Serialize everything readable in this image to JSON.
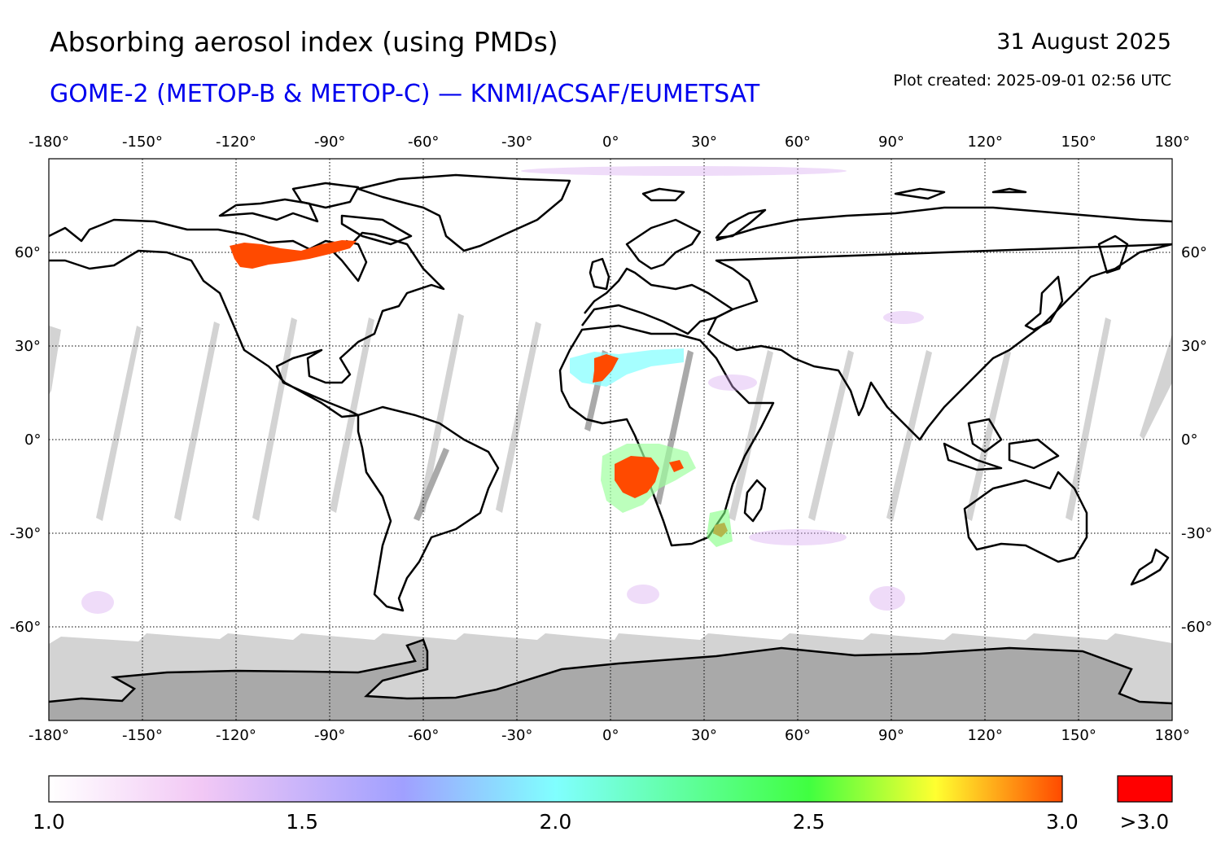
{
  "header": {
    "title": "Absorbing aerosol index (using PMDs)",
    "subtitle": "GOME-2 (METOP-B & METOP-C) — KNMI/ACSAF/EUMETSAT",
    "date": "31 August 2025",
    "plot_created": "Plot created: 2025-09-01 02:56 UTC"
  },
  "colors": {
    "subtitle": "#0000ee",
    "no_data_gray": "#d3d3d3",
    "land_gray": "#a9a9a9",
    "over_range": "#ff0000"
  },
  "map": {
    "projection": "equirectangular",
    "lon_range": [
      -180,
      180
    ],
    "lat_range": [
      -90,
      90
    ],
    "lon_ticks": [
      "-180°",
      "-150°",
      "-120°",
      "-90°",
      "-60°",
      "-30°",
      "0°",
      "30°",
      "60°",
      "90°",
      "120°",
      "150°",
      "180°"
    ],
    "lat_ticks": [
      "60°",
      "30°",
      "0°",
      "-30°",
      "-60°"
    ],
    "gridlines": "dotted"
  },
  "colorbar": {
    "min": 1.0,
    "max": 3.0,
    "labels": [
      "1.0",
      "1.5",
      "2.0",
      "2.5",
      "3.0"
    ],
    "over_label": ">3.0",
    "stops": [
      {
        "value": 1.0,
        "color": "#ffffff"
      },
      {
        "value": 1.3,
        "color": "#f2c8f5"
      },
      {
        "value": 1.7,
        "color": "#a0a0ff"
      },
      {
        "value": 2.0,
        "color": "#80ffff"
      },
      {
        "value": 2.5,
        "color": "#40ff40"
      },
      {
        "value": 2.75,
        "color": "#ffff30"
      },
      {
        "value": 3.0,
        "color": "#ff4a00"
      }
    ]
  },
  "features": [
    {
      "name": "canada-smoke",
      "value": 3.0
    },
    {
      "name": "west-africa-dust",
      "value": 3.0
    },
    {
      "name": "southern-africa-fires",
      "value": 3.0
    },
    {
      "name": "mozambique-aerosol",
      "value": 3.0
    }
  ]
}
